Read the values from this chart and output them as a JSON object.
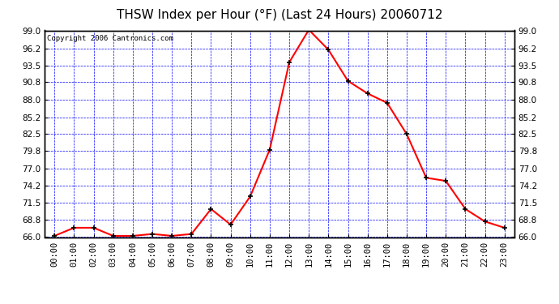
{
  "title": "THSW Index per Hour (°F) (Last 24 Hours) 20060712",
  "copyright": "Copyright 2006 Cantronics.com",
  "hours": [
    "00:00",
    "01:00",
    "02:00",
    "03:00",
    "04:00",
    "05:00",
    "06:00",
    "07:00",
    "08:00",
    "09:00",
    "10:00",
    "11:00",
    "12:00",
    "13:00",
    "14:00",
    "15:00",
    "16:00",
    "17:00",
    "18:00",
    "19:00",
    "20:00",
    "21:00",
    "22:00",
    "23:00"
  ],
  "values": [
    66.2,
    67.5,
    67.5,
    66.2,
    66.2,
    66.5,
    66.2,
    66.5,
    70.5,
    68.0,
    72.5,
    80.0,
    94.0,
    99.2,
    96.0,
    91.0,
    89.0,
    87.5,
    82.5,
    75.5,
    75.0,
    70.5,
    68.5,
    67.5
  ],
  "ymin": 66.0,
  "ymax": 99.0,
  "yticks": [
    66.0,
    68.8,
    71.5,
    74.2,
    77.0,
    79.8,
    82.5,
    85.2,
    88.0,
    90.8,
    93.5,
    96.2,
    99.0
  ],
  "line_color": "red",
  "marker_color": "black",
  "bg_color": "white",
  "plot_bg_color": "white",
  "grid_color": "blue",
  "title_color": "black",
  "copyright_color": "black",
  "title_fontsize": 11,
  "copyright_fontsize": 6.5,
  "tick_fontsize": 7.5
}
